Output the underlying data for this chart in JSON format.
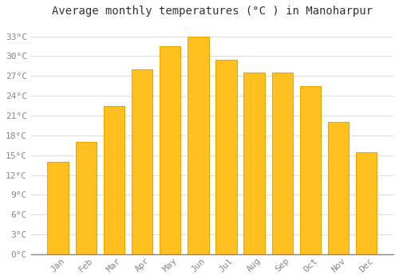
{
  "title": "Average monthly temperatures (°C ) in Manoharpur",
  "months": [
    "Jan",
    "Feb",
    "Mar",
    "Apr",
    "May",
    "Jun",
    "Jul",
    "Aug",
    "Sep",
    "Oct",
    "Nov",
    "Dec"
  ],
  "values": [
    14,
    17,
    22.5,
    28,
    31.5,
    33,
    29.5,
    27.5,
    27.5,
    25.5,
    20,
    15.5
  ],
  "bar_color": "#FFC020",
  "bar_edge_color": "#E8A800",
  "background_color": "#FFFFFF",
  "grid_color": "#DDDDDD",
  "title_fontsize": 10,
  "tick_fontsize": 8,
  "ylim": [
    0,
    35
  ],
  "yticks": [
    0,
    3,
    6,
    9,
    12,
    15,
    18,
    21,
    24,
    27,
    30,
    33
  ]
}
